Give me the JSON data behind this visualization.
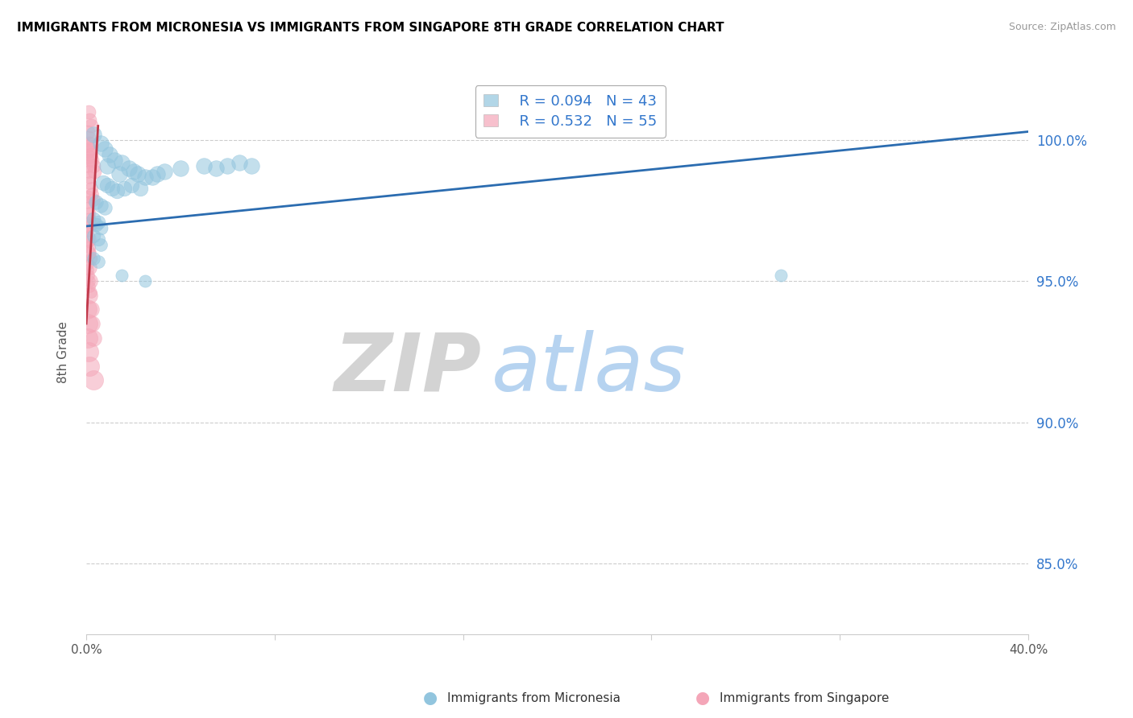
{
  "title": "IMMIGRANTS FROM MICRONESIA VS IMMIGRANTS FROM SINGAPORE 8TH GRADE CORRELATION CHART",
  "source": "Source: ZipAtlas.com",
  "ylabel": "8th Grade",
  "ytick_labels": [
    "100.0%",
    "95.0%",
    "90.0%",
    "85.0%"
  ],
  "ytick_values": [
    1.0,
    0.95,
    0.9,
    0.85
  ],
  "xlim": [
    0.0,
    0.4
  ],
  "ylim": [
    0.825,
    1.025
  ],
  "legend_r1": "R = 0.094",
  "legend_n1": "N = 43",
  "legend_r2": "R = 0.532",
  "legend_n2": "N = 55",
  "color_blue": "#92c5de",
  "color_pink": "#f4a6b8",
  "color_trendline_blue": "#2b6cb0",
  "color_trendline_pink": "#c0384a",
  "watermark_zip": "ZIP",
  "watermark_atlas": "atlas",
  "blue_trend": [
    0.0,
    0.4,
    0.9695,
    1.003
  ],
  "pink_trend": [
    0.0,
    0.005,
    0.935,
    1.005
  ],
  "blue_dots": [
    [
      0.003,
      1.002
    ],
    [
      0.006,
      0.999
    ],
    [
      0.008,
      0.997
    ],
    [
      0.01,
      0.995
    ],
    [
      0.012,
      0.993
    ],
    [
      0.009,
      0.991
    ],
    [
      0.015,
      0.992
    ],
    [
      0.018,
      0.99
    ],
    [
      0.02,
      0.989
    ],
    [
      0.014,
      0.988
    ],
    [
      0.022,
      0.988
    ],
    [
      0.025,
      0.987
    ],
    [
      0.028,
      0.987
    ],
    [
      0.03,
      0.988
    ],
    [
      0.033,
      0.989
    ],
    [
      0.04,
      0.99
    ],
    [
      0.05,
      0.991
    ],
    [
      0.055,
      0.99
    ],
    [
      0.06,
      0.991
    ],
    [
      0.065,
      0.992
    ],
    [
      0.07,
      0.991
    ],
    [
      0.007,
      0.985
    ],
    [
      0.009,
      0.984
    ],
    [
      0.011,
      0.983
    ],
    [
      0.013,
      0.982
    ],
    [
      0.016,
      0.983
    ],
    [
      0.019,
      0.984
    ],
    [
      0.023,
      0.983
    ],
    [
      0.004,
      0.978
    ],
    [
      0.006,
      0.977
    ],
    [
      0.008,
      0.976
    ],
    [
      0.003,
      0.972
    ],
    [
      0.005,
      0.971
    ],
    [
      0.004,
      0.97
    ],
    [
      0.006,
      0.969
    ],
    [
      0.003,
      0.966
    ],
    [
      0.005,
      0.965
    ],
    [
      0.006,
      0.963
    ],
    [
      0.003,
      0.958
    ],
    [
      0.005,
      0.957
    ],
    [
      0.015,
      0.952
    ],
    [
      0.025,
      0.95
    ],
    [
      0.295,
      0.952
    ]
  ],
  "pink_dots": [
    [
      0.001,
      1.01
    ],
    [
      0.0015,
      1.007
    ],
    [
      0.002,
      1.005
    ],
    [
      0.0008,
      1.003
    ],
    [
      0.001,
      1.001
    ],
    [
      0.0012,
      0.999
    ],
    [
      0.0015,
      0.997
    ],
    [
      0.002,
      0.995
    ],
    [
      0.0025,
      0.993
    ],
    [
      0.003,
      0.991
    ],
    [
      0.0035,
      0.989
    ],
    [
      0.0008,
      0.998
    ],
    [
      0.001,
      0.996
    ],
    [
      0.0012,
      0.994
    ],
    [
      0.0005,
      0.993
    ],
    [
      0.0008,
      0.991
    ],
    [
      0.001,
      0.989
    ],
    [
      0.0012,
      0.987
    ],
    [
      0.0015,
      0.985
    ],
    [
      0.002,
      0.983
    ],
    [
      0.0025,
      0.981
    ],
    [
      0.003,
      0.979
    ],
    [
      0.0005,
      0.98
    ],
    [
      0.0008,
      0.978
    ],
    [
      0.001,
      0.976
    ],
    [
      0.0012,
      0.974
    ],
    [
      0.0015,
      0.972
    ],
    [
      0.002,
      0.97
    ],
    [
      0.0005,
      0.968
    ],
    [
      0.0008,
      0.966
    ],
    [
      0.001,
      0.964
    ],
    [
      0.0012,
      0.962
    ],
    [
      0.0015,
      0.96
    ],
    [
      0.002,
      0.958
    ],
    [
      0.0005,
      0.956
    ],
    [
      0.0008,
      0.954
    ],
    [
      0.001,
      0.952
    ],
    [
      0.0012,
      0.95
    ],
    [
      0.0015,
      0.948
    ],
    [
      0.002,
      0.946
    ],
    [
      0.0003,
      0.97
    ],
    [
      0.0005,
      0.965
    ],
    [
      0.0008,
      0.96
    ],
    [
      0.001,
      0.955
    ],
    [
      0.0012,
      0.95
    ],
    [
      0.0015,
      0.945
    ],
    [
      0.002,
      0.94
    ],
    [
      0.0025,
      0.935
    ],
    [
      0.003,
      0.93
    ],
    [
      0.0003,
      0.94
    ],
    [
      0.0005,
      0.935
    ],
    [
      0.0008,
      0.93
    ],
    [
      0.001,
      0.925
    ],
    [
      0.0012,
      0.92
    ],
    [
      0.003,
      0.915
    ]
  ],
  "blue_sizes": [
    200,
    200,
    200,
    200,
    200,
    200,
    200,
    200,
    200,
    200,
    200,
    200,
    200,
    200,
    200,
    200,
    200,
    200,
    200,
    200,
    200,
    180,
    180,
    180,
    180,
    180,
    180,
    180,
    160,
    160,
    160,
    150,
    150,
    150,
    150,
    140,
    140,
    130,
    130,
    130,
    120,
    120,
    120
  ],
  "pink_sizes": [
    150,
    150,
    150,
    150,
    150,
    150,
    150,
    150,
    150,
    150,
    150,
    140,
    140,
    140,
    130,
    130,
    130,
    130,
    130,
    130,
    130,
    130,
    120,
    120,
    120,
    120,
    120,
    120,
    110,
    110,
    110,
    110,
    110,
    110,
    100,
    100,
    100,
    100,
    100,
    100,
    200,
    200,
    200,
    200,
    200,
    200,
    200,
    200,
    200,
    300,
    300,
    300,
    300,
    300,
    300
  ]
}
